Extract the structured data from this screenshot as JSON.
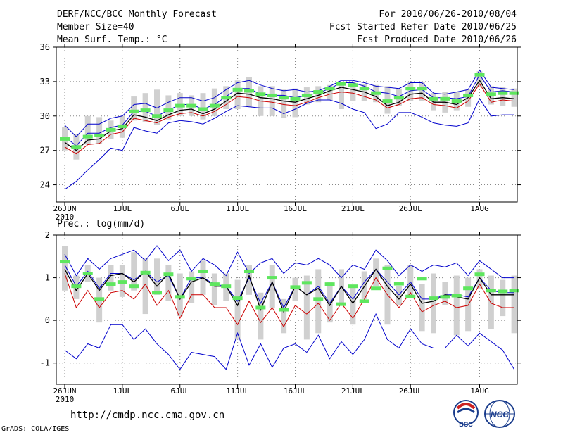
{
  "header": {
    "title": "DERF/NCC/BCC Monthly Forecast",
    "member_size": "Member Size=40",
    "variable": "Mean Surf. Temp.: °C",
    "for_range": "For 2010/06/26-2010/08/04",
    "fcst_started": "Fcst Started Refer Date 2010/06/25",
    "fcst_produced": "Fcst Produced Date 2010/06/26"
  },
  "footer": {
    "url": "http://cmdp.ncc.cma.gov.cn",
    "grads": "GrADS: COLA/IGES",
    "logo_bcc": "BCC",
    "logo_ncc": "NCC"
  },
  "colors": {
    "max": "#0000cc",
    "min": "#0000cc",
    "upper": "#0000cc",
    "lower": "#cc0000",
    "mean": "#000000",
    "box": "#d0d0d0",
    "marker": "#5ee65e"
  },
  "chart_data": [
    {
      "type": "line",
      "title": "Mean Surf. Temp.: °C",
      "ylim": [
        22.5,
        36
      ],
      "yticks": [
        24,
        27,
        30,
        33,
        36
      ],
      "xticks": [
        {
          "day": 0,
          "label": "26JUN",
          "sub": "2010"
        },
        {
          "day": 5,
          "label": "1JUL",
          "sub": ""
        },
        {
          "day": 10,
          "label": "6JUL",
          "sub": ""
        },
        {
          "day": 15,
          "label": "11JUL",
          "sub": ""
        },
        {
          "day": 20,
          "label": "16JUL",
          "sub": ""
        },
        {
          "day": 25,
          "label": "21JUL",
          "sub": ""
        },
        {
          "day": 30,
          "label": "26JUL",
          "sub": ""
        },
        {
          "day": 36,
          "label": "1AUG",
          "sub": ""
        }
      ],
      "days": 40,
      "series": [
        {
          "name": "max",
          "values": [
            29.2,
            28.2,
            29.3,
            29.3,
            29.8,
            30.0,
            31.0,
            31.1,
            30.7,
            31.2,
            31.6,
            31.6,
            31.3,
            31.6,
            32.3,
            32.9,
            33.1,
            32.7,
            32.4,
            32.2,
            32.3,
            32.1,
            32.2,
            32.6,
            33.1,
            33.1,
            32.9,
            32.6,
            32.5,
            32.4,
            32.9,
            32.9,
            32.0,
            31.9,
            32.1,
            32.3,
            34.0,
            32.5,
            32.4,
            32.3
          ]
        },
        {
          "name": "upper",
          "values": [
            28.2,
            27.4,
            28.5,
            28.5,
            29.0,
            29.2,
            30.4,
            30.4,
            30.0,
            30.5,
            31.0,
            31.0,
            30.6,
            31.0,
            31.7,
            32.4,
            32.4,
            31.9,
            31.8,
            31.8,
            31.6,
            31.8,
            32.0,
            32.4,
            32.9,
            32.9,
            32.6,
            32.1,
            32.0,
            31.7,
            32.2,
            32.3,
            31.6,
            31.6,
            31.5,
            31.7,
            33.6,
            32.1,
            32.2,
            32.1
          ]
        },
        {
          "name": "mean",
          "values": [
            27.7,
            27.0,
            27.9,
            28.0,
            28.7,
            28.9,
            30.1,
            29.9,
            29.6,
            30.1,
            30.5,
            30.6,
            30.2,
            30.6,
            31.3,
            32.0,
            31.9,
            31.6,
            31.5,
            31.3,
            31.2,
            31.5,
            31.8,
            32.2,
            32.5,
            32.3,
            32.1,
            31.7,
            30.9,
            31.2,
            31.9,
            32.0,
            31.2,
            31.2,
            31.0,
            31.6,
            33.1,
            31.5,
            31.6,
            31.5
          ]
        },
        {
          "name": "lower",
          "values": [
            27.3,
            26.7,
            27.5,
            27.6,
            28.4,
            28.6,
            29.8,
            29.6,
            29.4,
            29.9,
            30.2,
            30.3,
            30.0,
            30.4,
            31.0,
            31.7,
            31.6,
            31.3,
            31.2,
            31.0,
            30.9,
            31.2,
            31.6,
            31.9,
            32.1,
            32.0,
            31.7,
            31.4,
            30.7,
            31.0,
            31.5,
            31.6,
            31.0,
            30.9,
            30.7,
            31.3,
            32.8,
            31.2,
            31.4,
            31.3
          ]
        },
        {
          "name": "min",
          "values": [
            23.6,
            24.3,
            25.3,
            26.2,
            27.2,
            27.0,
            29.0,
            28.7,
            28.5,
            29.4,
            29.6,
            29.5,
            29.3,
            29.8,
            30.4,
            30.9,
            30.8,
            30.7,
            30.7,
            30.2,
            30.6,
            31.1,
            31.4,
            31.4,
            31.1,
            30.6,
            30.3,
            28.9,
            29.3,
            30.3,
            30.3,
            29.9,
            29.4,
            29.2,
            29.1,
            29.4,
            31.5,
            30.0,
            30.1,
            30.1
          ]
        },
        {
          "name": "box_top",
          "values": [
            29.0,
            28.4,
            30.0,
            29.9,
            29.6,
            30.0,
            31.7,
            32.0,
            32.3,
            31.8,
            32.0,
            31.8,
            32.0,
            32.4,
            32.6,
            33.1,
            33.4,
            32.6,
            32.6,
            32.3,
            32.4,
            32.5,
            32.6,
            32.7,
            33.0,
            33.0,
            32.8,
            32.7,
            32.6,
            32.4,
            33.0,
            33.0,
            32.0,
            32.1,
            32.1,
            32.3,
            33.9,
            32.6,
            32.5,
            32.4
          ]
        },
        {
          "name": "box_bottom",
          "values": [
            27.0,
            26.2,
            27.5,
            27.6,
            28.0,
            28.1,
            29.6,
            29.5,
            29.2,
            29.7,
            30.0,
            30.0,
            29.7,
            30.0,
            30.6,
            30.6,
            30.8,
            30.0,
            30.0,
            29.8,
            29.9,
            31.0,
            31.2,
            31.4,
            30.6,
            31.3,
            31.3,
            31.2,
            30.2,
            30.9,
            31.3,
            31.3,
            30.5,
            30.3,
            30.5,
            30.8,
            32.5,
            31.0,
            30.9,
            30.8
          ]
        },
        {
          "name": "marker",
          "values": [
            28.0,
            27.3,
            28.2,
            28.3,
            28.8,
            29.1,
            30.4,
            30.5,
            30.0,
            30.5,
            30.9,
            30.9,
            30.6,
            30.9,
            31.6,
            32.3,
            32.2,
            31.9,
            31.8,
            31.6,
            31.5,
            31.8,
            32.1,
            32.4,
            32.8,
            32.7,
            32.4,
            32.0,
            31.3,
            31.6,
            32.4,
            32.4,
            31.5,
            31.5,
            31.3,
            31.8,
            33.6,
            31.9,
            32.0,
            32.0
          ]
        }
      ]
    },
    {
      "type": "line",
      "title": "Prec.: log(mm/d)",
      "ylim": [
        -1.5,
        2
      ],
      "yticks": [
        -1,
        0,
        1,
        2
      ],
      "xticks": [
        {
          "day": 0,
          "label": "26JUN",
          "sub": "2010"
        },
        {
          "day": 5,
          "label": "1JUL",
          "sub": ""
        },
        {
          "day": 10,
          "label": "6JUL",
          "sub": ""
        },
        {
          "day": 15,
          "label": "11JUL",
          "sub": ""
        },
        {
          "day": 20,
          "label": "16JUL",
          "sub": ""
        },
        {
          "day": 25,
          "label": "21JUL",
          "sub": ""
        },
        {
          "day": 30,
          "label": "26JUL",
          "sub": ""
        },
        {
          "day": 36,
          "label": "1AUG",
          "sub": ""
        }
      ],
      "days": 40,
      "series": [
        {
          "name": "max",
          "values": [
            1.55,
            1.05,
            1.45,
            1.2,
            1.45,
            1.55,
            1.65,
            1.4,
            1.75,
            1.4,
            1.65,
            1.15,
            1.45,
            1.3,
            1.05,
            1.6,
            1.1,
            1.35,
            1.45,
            1.1,
            1.35,
            1.3,
            1.45,
            1.3,
            1.0,
            1.3,
            1.2,
            1.65,
            1.4,
            1.05,
            1.3,
            1.15,
            1.3,
            1.25,
            1.35,
            1.05,
            1.4,
            1.2,
            1.0,
            1.0
          ]
        },
        {
          "name": "upper",
          "values": [
            1.3,
            0.8,
            1.15,
            0.75,
            1.1,
            1.1,
            0.95,
            1.15,
            0.9,
            1.05,
            0.5,
            1.0,
            1.0,
            0.85,
            0.8,
            0.45,
            1.0,
            0.4,
            0.9,
            0.3,
            0.8,
            0.6,
            0.8,
            0.4,
            0.8,
            0.5,
            0.9,
            1.2,
            0.9,
            0.6,
            0.9,
            0.5,
            0.5,
            0.6,
            0.6,
            0.55,
            1.0,
            0.7,
            0.65,
            0.65
          ]
        },
        {
          "name": "mean",
          "values": [
            1.2,
            0.7,
            1.1,
            0.7,
            1.05,
            1.1,
            0.9,
            1.15,
            0.8,
            1.1,
            0.5,
            0.9,
            1.0,
            0.8,
            0.8,
            0.35,
            1.05,
            0.25,
            0.9,
            0.2,
            0.8,
            0.6,
            0.75,
            0.35,
            0.8,
            0.4,
            0.8,
            1.2,
            0.8,
            0.5,
            0.85,
            0.4,
            0.45,
            0.6,
            0.55,
            0.5,
            1.0,
            0.6,
            0.6,
            0.6
          ]
        },
        {
          "name": "lower",
          "values": [
            1.1,
            0.3,
            0.7,
            0.3,
            0.65,
            0.7,
            0.5,
            0.85,
            0.35,
            0.7,
            0.05,
            0.6,
            0.6,
            0.3,
            0.3,
            -0.1,
            0.45,
            -0.05,
            0.3,
            -0.15,
            0.35,
            0.15,
            0.4,
            0.0,
            0.4,
            0.05,
            0.5,
            1.0,
            0.6,
            0.3,
            0.65,
            0.2,
            0.35,
            0.45,
            0.3,
            0.35,
            0.85,
            0.4,
            0.3,
            0.3
          ]
        },
        {
          "name": "min",
          "values": [
            -0.7,
            -0.9,
            -0.55,
            -0.65,
            -0.1,
            -0.1,
            -0.45,
            -0.2,
            -0.55,
            -0.8,
            -1.15,
            -0.75,
            -0.8,
            -0.85,
            -1.15,
            -0.3,
            -1.05,
            -0.55,
            -1.1,
            -0.65,
            -0.55,
            -0.75,
            -0.35,
            -0.9,
            -0.5,
            -0.8,
            -0.45,
            0.15,
            -0.45,
            -0.65,
            -0.2,
            -0.55,
            -0.65,
            -0.65,
            -0.35,
            -0.6,
            -0.3,
            -0.5,
            -0.7,
            -1.15
          ]
        },
        {
          "name": "box_top",
          "values": [
            1.75,
            1.05,
            1.3,
            1.0,
            1.3,
            1.3,
            1.6,
            1.45,
            1.45,
            1.3,
            1.1,
            1.15,
            1.4,
            1.1,
            1.1,
            0.95,
            1.3,
            0.65,
            1.3,
            0.5,
            1.0,
            1.05,
            1.2,
            0.9,
            1.2,
            0.8,
            1.15,
            1.45,
            1.3,
            0.8,
            1.3,
            0.85,
            1.1,
            0.9,
            1.05,
            1.0,
            1.2,
            1.05,
            0.95,
            1.05
          ]
        },
        {
          "name": "box_bottom",
          "values": [
            0.7,
            0.5,
            0.9,
            -0.05,
            0.7,
            0.55,
            0.7,
            0.15,
            0.6,
            0.45,
            0.1,
            0.4,
            0.6,
            0.35,
            0.45,
            -0.45,
            0.6,
            -0.45,
            0.3,
            -0.3,
            0.45,
            -0.45,
            -0.3,
            -0.05,
            0.4,
            -0.1,
            0.5,
            0.8,
            -0.1,
            0.35,
            0.55,
            -0.25,
            -0.3,
            0.35,
            -0.35,
            -0.25,
            0.75,
            -0.2,
            0.1,
            -0.3
          ]
        },
        {
          "name": "marker",
          "values": [
            1.38,
            0.8,
            1.1,
            0.5,
            0.85,
            0.9,
            0.8,
            1.12,
            0.65,
            1.08,
            0.55,
            0.98,
            1.15,
            0.85,
            0.8,
            0.52,
            1.15,
            0.3,
            1.0,
            0.25,
            0.78,
            0.88,
            0.5,
            0.85,
            0.38,
            0.8,
            0.45,
            0.75,
            1.22,
            0.86,
            0.56,
            0.98,
            0.52,
            0.55,
            0.58,
            0.75,
            1.08,
            0.7,
            0.68,
            0.7
          ]
        }
      ]
    }
  ]
}
